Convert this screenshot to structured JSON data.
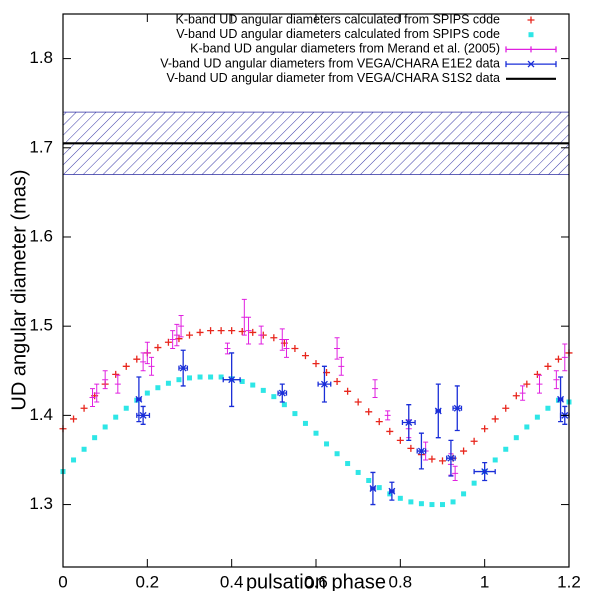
{
  "chart_data": {
    "type": "scatter",
    "xlabel": "pulsation phase",
    "ylabel": "UD angular diameter (mas)",
    "xlim": [
      0,
      1.2
    ],
    "ylim": [
      1.23,
      1.85
    ],
    "xticks": [
      0,
      0.2,
      0.4,
      0.6,
      0.8,
      1,
      1.2
    ],
    "yticks": [
      1.3,
      1.4,
      1.5,
      1.6,
      1.7,
      1.8
    ],
    "legend": "top-right",
    "series": [
      {
        "name": "K-band UD angular diameters calculated from SPIPS code",
        "style": "plus",
        "color": "#e8261c",
        "x": [
          0,
          0.025,
          0.05,
          0.075,
          0.1,
          0.125,
          0.15,
          0.175,
          0.2,
          0.225,
          0.25,
          0.275,
          0.3,
          0.325,
          0.35,
          0.375,
          0.4,
          0.425,
          0.45,
          0.475,
          0.5,
          0.525,
          0.55,
          0.575,
          0.6,
          0.625,
          0.65,
          0.675,
          0.7,
          0.725,
          0.75,
          0.775,
          0.8,
          0.825,
          0.85,
          0.875,
          0.9,
          0.925,
          0.95,
          0.975,
          1.0,
          1.025,
          1.05,
          1.075,
          1.1,
          1.125,
          1.15,
          1.175,
          1.2
        ],
        "values": [
          1.385,
          1.396,
          1.408,
          1.422,
          1.435,
          1.446,
          1.455,
          1.463,
          1.47,
          1.476,
          1.482,
          1.486,
          1.49,
          1.493,
          1.495,
          1.495,
          1.495,
          1.494,
          1.493,
          1.49,
          1.487,
          1.481,
          1.475,
          1.467,
          1.458,
          1.448,
          1.438,
          1.427,
          1.415,
          1.404,
          1.393,
          1.382,
          1.372,
          1.363,
          1.356,
          1.351,
          1.349,
          1.352,
          1.36,
          1.371,
          1.385,
          1.396,
          1.408,
          1.422,
          1.435,
          1.446,
          1.455,
          1.463,
          1.47
        ]
      },
      {
        "name": "V-band UD angular diameters calculated from SPIPS code",
        "style": "square",
        "color": "#2ee6e6",
        "x": [
          0,
          0.025,
          0.05,
          0.075,
          0.1,
          0.125,
          0.15,
          0.175,
          0.2,
          0.225,
          0.25,
          0.275,
          0.3,
          0.325,
          0.35,
          0.375,
          0.4,
          0.425,
          0.45,
          0.475,
          0.5,
          0.525,
          0.55,
          0.575,
          0.6,
          0.625,
          0.65,
          0.675,
          0.7,
          0.725,
          0.75,
          0.775,
          0.8,
          0.825,
          0.85,
          0.875,
          0.9,
          0.925,
          0.95,
          0.975,
          1.0,
          1.025,
          1.05,
          1.075,
          1.1,
          1.125,
          1.15,
          1.175,
          1.2
        ],
        "values": [
          1.337,
          1.35,
          1.362,
          1.375,
          1.387,
          1.398,
          1.408,
          1.417,
          1.425,
          1.431,
          1.436,
          1.44,
          1.442,
          1.443,
          1.443,
          1.443,
          1.441,
          1.438,
          1.434,
          1.428,
          1.421,
          1.412,
          1.402,
          1.391,
          1.38,
          1.368,
          1.357,
          1.346,
          1.336,
          1.327,
          1.319,
          1.312,
          1.307,
          1.303,
          1.301,
          1.3,
          1.3,
          1.303,
          1.312,
          1.324,
          1.337,
          1.35,
          1.362,
          1.375,
          1.387,
          1.398,
          1.408,
          1.417,
          1.415
        ]
      },
      {
        "name": "K-band UD angular diameters from Merand et al. (2005)",
        "style": "errorbar-y",
        "color": "#e020e0",
        "x": [
          0.07,
          0.08,
          0.1,
          0.13,
          0.19,
          0.2,
          0.21,
          0.26,
          0.27,
          0.28,
          0.39,
          0.43,
          0.44,
          0.47,
          0.52,
          0.53,
          0.65,
          0.66,
          0.74,
          0.77,
          0.82,
          0.86,
          0.92,
          0.93,
          1.09,
          1.13,
          1.17,
          1.19
        ],
        "values": [
          1.42,
          1.425,
          1.44,
          1.435,
          1.46,
          1.47,
          1.455,
          1.485,
          1.49,
          1.5,
          1.475,
          1.51,
          1.495,
          1.49,
          1.485,
          1.475,
          1.475,
          1.455,
          1.43,
          1.4,
          1.385,
          1.36,
          1.345,
          1.335,
          1.425,
          1.435,
          1.44,
          1.465
        ],
        "errors": [
          0.01,
          0.01,
          0.01,
          0.01,
          0.01,
          0.012,
          0.01,
          0.01,
          0.012,
          0.012,
          0.006,
          0.02,
          0.015,
          0.01,
          0.012,
          0.01,
          0.012,
          0.01,
          0.01,
          0.005,
          0.01,
          0.01,
          0.012,
          0.008,
          0.008,
          0.01,
          0.01,
          0.015
        ]
      },
      {
        "name": "V-band UD angular diameters from VEGA/CHARA E1E2 data",
        "style": "errorbar-xy",
        "color": "#1a2ed8",
        "x": [
          0.18,
          0.19,
          0.285,
          0.4,
          0.52,
          0.62,
          0.735,
          0.78,
          0.82,
          0.85,
          0.89,
          0.92,
          0.935,
          1.0,
          1.18,
          1.19
        ],
        "values": [
          1.418,
          1.4,
          1.453,
          1.44,
          1.425,
          1.435,
          1.318,
          1.315,
          1.392,
          1.36,
          1.405,
          1.352,
          1.408,
          1.337,
          1.418,
          1.4
        ],
        "errors": [
          0.025,
          0.01,
          0.02,
          0.03,
          0.01,
          0.02,
          0.018,
          0.01,
          0.02,
          0.02,
          0.03,
          0.02,
          0.025,
          0.01,
          0.025,
          0.01
        ],
        "xerrors": [
          0.005,
          0.015,
          0.01,
          0.02,
          0.01,
          0.015,
          0.005,
          0.005,
          0.015,
          0.01,
          0.005,
          0.01,
          0.01,
          0.025,
          0.005,
          0.01
        ]
      },
      {
        "name": "V-band UD angular diameter from VEGA/CHARA S1S2 data",
        "style": "line",
        "color": "#000000",
        "value": 1.705,
        "error": 0.035,
        "band_color": "#3a3aa8"
      }
    ]
  }
}
